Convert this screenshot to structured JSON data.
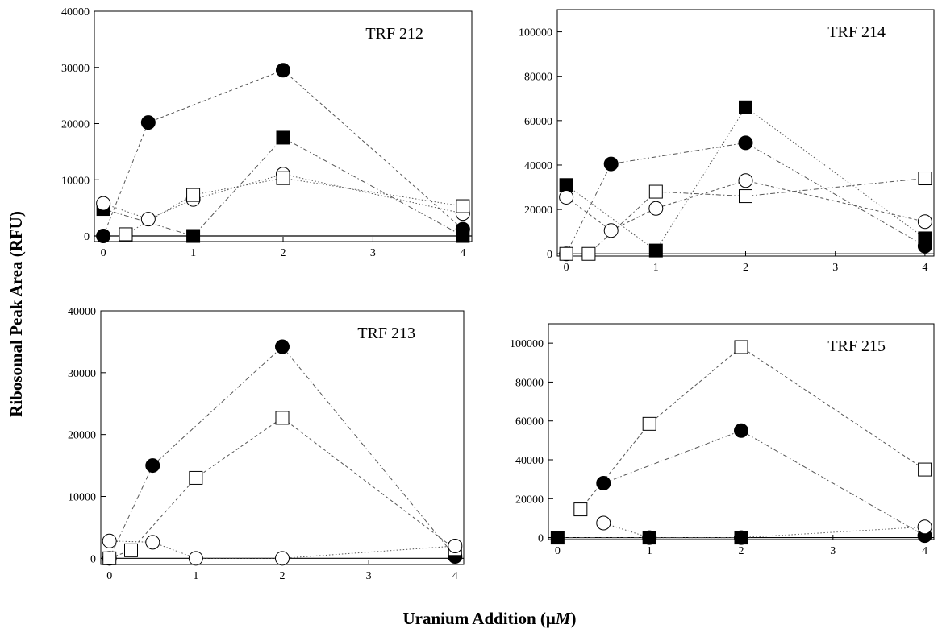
{
  "figure": {
    "ylabel": "Ribosomal Peak Area (RFU)",
    "xlabel": "Uranium Addition (μM)",
    "xlabel_main": "Uranium Addition (μ",
    "xlabel_italic": "M",
    "xlabel_close": ")"
  },
  "chart_data": [
    {
      "type": "scatter",
      "title": "TRF 212",
      "xlabel": "Uranium Addition (μM)",
      "ylabel": "Ribosomal Peak Area (RFU)",
      "xlim": [
        -0.1,
        4.1
      ],
      "ylim": [
        -1000,
        40000
      ],
      "xticks": [
        0,
        1,
        2,
        3,
        4
      ],
      "yticks": [
        0,
        10000,
        20000,
        30000,
        40000
      ],
      "grid": false,
      "series": [
        {
          "marker": "filled-circle",
          "line": "dashed",
          "x": [
            0,
            0.5,
            2,
            4
          ],
          "y": [
            0,
            20200,
            29500,
            1200
          ]
        },
        {
          "marker": "filled-square",
          "line": "dash-dot",
          "x": [
            0,
            1,
            2,
            4
          ],
          "y": [
            4800,
            0,
            17500,
            0
          ]
        },
        {
          "marker": "open-circle",
          "line": "dotted",
          "x": [
            0,
            0.5,
            1,
            2,
            4
          ],
          "y": [
            5800,
            3000,
            6500,
            11000,
            4000
          ]
        },
        {
          "marker": "open-square",
          "line": "dotted",
          "x": [
            0.25,
            1,
            2,
            4
          ],
          "y": [
            300,
            7300,
            10300,
            5300
          ]
        }
      ]
    },
    {
      "type": "scatter",
      "title": "TRF 214",
      "xlabel": "Uranium Addition (μM)",
      "ylabel": "Ribosomal Peak Area (RFU)",
      "xlim": [
        -0.1,
        4.1
      ],
      "ylim": [
        -1000,
        110000
      ],
      "xticks": [
        0,
        1,
        2,
        3,
        4
      ],
      "yticks": [
        0,
        20000,
        40000,
        60000,
        80000,
        100000
      ],
      "grid": false,
      "series": [
        {
          "marker": "filled-circle",
          "line": "dash-dot",
          "x": [
            0,
            0.5,
            2,
            4
          ],
          "y": [
            0,
            40500,
            50000,
            3500
          ]
        },
        {
          "marker": "filled-square",
          "line": "dotted",
          "x": [
            0,
            1,
            2,
            4
          ],
          "y": [
            31000,
            1500,
            66000,
            7000
          ]
        },
        {
          "marker": "open-circle",
          "line": "dashed",
          "x": [
            0,
            0.5,
            1,
            2,
            4
          ],
          "y": [
            25500,
            10500,
            20500,
            33000,
            14500
          ]
        },
        {
          "marker": "open-square",
          "line": "dash-dot",
          "x": [
            0,
            0.25,
            1,
            2,
            4
          ],
          "y": [
            0,
            0,
            28000,
            26000,
            34000
          ]
        }
      ]
    },
    {
      "type": "scatter",
      "title": "TRF 213",
      "xlabel": "Uranium Addition (μM)",
      "ylabel": "Ribosomal Peak Area (RFU)",
      "xlim": [
        -0.1,
        4.1
      ],
      "ylim": [
        -1000,
        40000
      ],
      "xticks": [
        0,
        1,
        2,
        3,
        4
      ],
      "yticks": [
        0,
        10000,
        20000,
        30000,
        40000
      ],
      "grid": false,
      "series": [
        {
          "marker": "filled-circle",
          "line": "dash-dot",
          "x": [
            0,
            0.5,
            2,
            4
          ],
          "y": [
            0,
            15000,
            34200,
            300
          ]
        },
        {
          "marker": "open-square",
          "line": "dashed",
          "x": [
            0,
            0.25,
            1,
            2,
            4
          ],
          "y": [
            0,
            1300,
            13000,
            22700,
            1500
          ]
        },
        {
          "marker": "open-circle",
          "line": "dotted",
          "x": [
            0,
            0.5,
            1,
            2,
            4
          ],
          "y": [
            2800,
            2600,
            0,
            0,
            2000
          ]
        }
      ]
    },
    {
      "type": "scatter",
      "title": "TRF 215",
      "xlabel": "Uranium Addition (μM)",
      "ylabel": "Ribosomal Peak Area (RFU)",
      "xlim": [
        -0.1,
        4.1
      ],
      "ylim": [
        -1000,
        110000
      ],
      "xticks": [
        0,
        1,
        2,
        3,
        4
      ],
      "yticks": [
        0,
        20000,
        40000,
        60000,
        80000,
        100000
      ],
      "grid": false,
      "series": [
        {
          "marker": "open-square",
          "line": "dashed",
          "x": [
            0.25,
            1,
            2,
            4
          ],
          "y": [
            14500,
            58500,
            98000,
            35000
          ]
        },
        {
          "marker": "filled-circle",
          "line": "dash-dot",
          "x": [
            0.5,
            2,
            4
          ],
          "y": [
            28000,
            55000,
            1000
          ]
        },
        {
          "marker": "open-circle",
          "line": "dotted",
          "x": [
            0.5,
            1,
            2,
            4
          ],
          "y": [
            7500,
            0,
            0,
            5500
          ]
        },
        {
          "marker": "filled-square",
          "line": "dash-dot",
          "x": [
            0,
            1,
            2
          ],
          "y": [
            0,
            0,
            0
          ]
        }
      ]
    }
  ]
}
